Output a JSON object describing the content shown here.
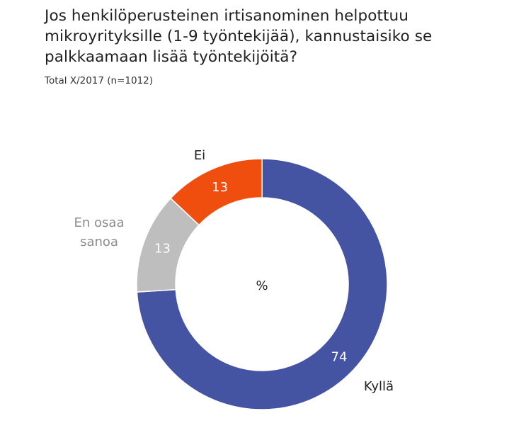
{
  "chart_data": {
    "type": "pie",
    "variant": "donut",
    "title": "Jos henkilöperusteinen irtisanominen helpottuu mikroyrityksille (1-9 työntekijää), kannustaisiko se palkkaamaan lisää työntekijöitä?",
    "subtitle": "Total X/2017  (n=1012)",
    "center_label": "%",
    "unit": "%",
    "slices": [
      {
        "name": "Kyllä",
        "value": 74,
        "color": "#4553A3",
        "label_color": "#222222",
        "value_color": "#ffffff"
      },
      {
        "name": "En osaa sanoa",
        "name_lines": [
          "En osaa",
          "sanoa"
        ],
        "value": 13,
        "color": "#BEBEBE",
        "label_color": "#8C8C8C",
        "value_color": "#ffffff"
      },
      {
        "name": "Ei",
        "value": 13,
        "color": "#F04E0E",
        "label_color": "#222222",
        "value_color": "#ffffff"
      }
    ]
  }
}
